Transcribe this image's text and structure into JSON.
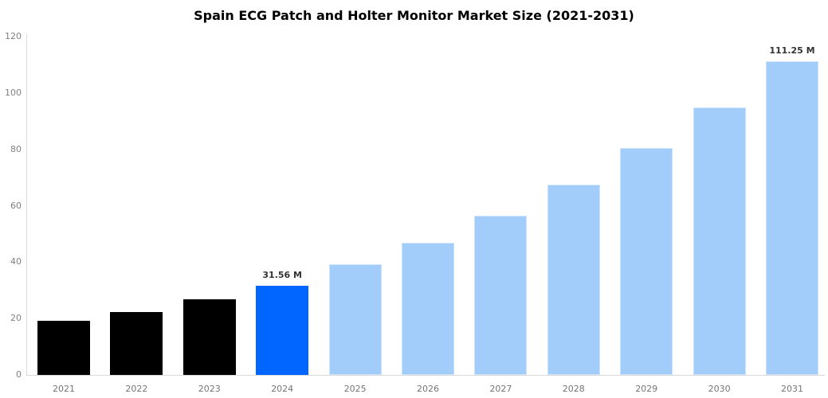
{
  "chart_data": {
    "type": "bar",
    "title": "Spain ECG Patch and Holter Monitor Market Size (2021-2031)",
    "categories": [
      "2021",
      "2022",
      "2023",
      "2024",
      "2025",
      "2026",
      "2027",
      "2028",
      "2029",
      "2030",
      "2031"
    ],
    "values": [
      19.2,
      22.4,
      26.7,
      31.56,
      39.2,
      47.0,
      56.5,
      67.6,
      80.4,
      95.0,
      111.25
    ],
    "unit": "M",
    "bar_labels": [
      "",
      "",
      "",
      "31.56 M",
      "",
      "",
      "",
      "",
      "",
      "",
      "111.25 M"
    ],
    "bar_roles": [
      "historical",
      "historical",
      "historical",
      "current",
      "forecast",
      "forecast",
      "forecast",
      "forecast",
      "forecast",
      "forecast",
      "forecast"
    ],
    "colors": {
      "historical": "#000000",
      "current": "#0066ff",
      "forecast": "#a2cdfa"
    },
    "xlabel": "",
    "ylabel": "",
    "ylim": [
      0,
      120
    ],
    "yticks": [
      0,
      20,
      40,
      60,
      80,
      100,
      120
    ],
    "grid": false,
    "legend": false,
    "styles": {
      "background": "#ffffff",
      "axis_line": "#d9d9d9",
      "tick_text": "#808080",
      "x_tick_text": "#757575",
      "value_label_text": "#333333",
      "title_text": "#000000"
    }
  }
}
